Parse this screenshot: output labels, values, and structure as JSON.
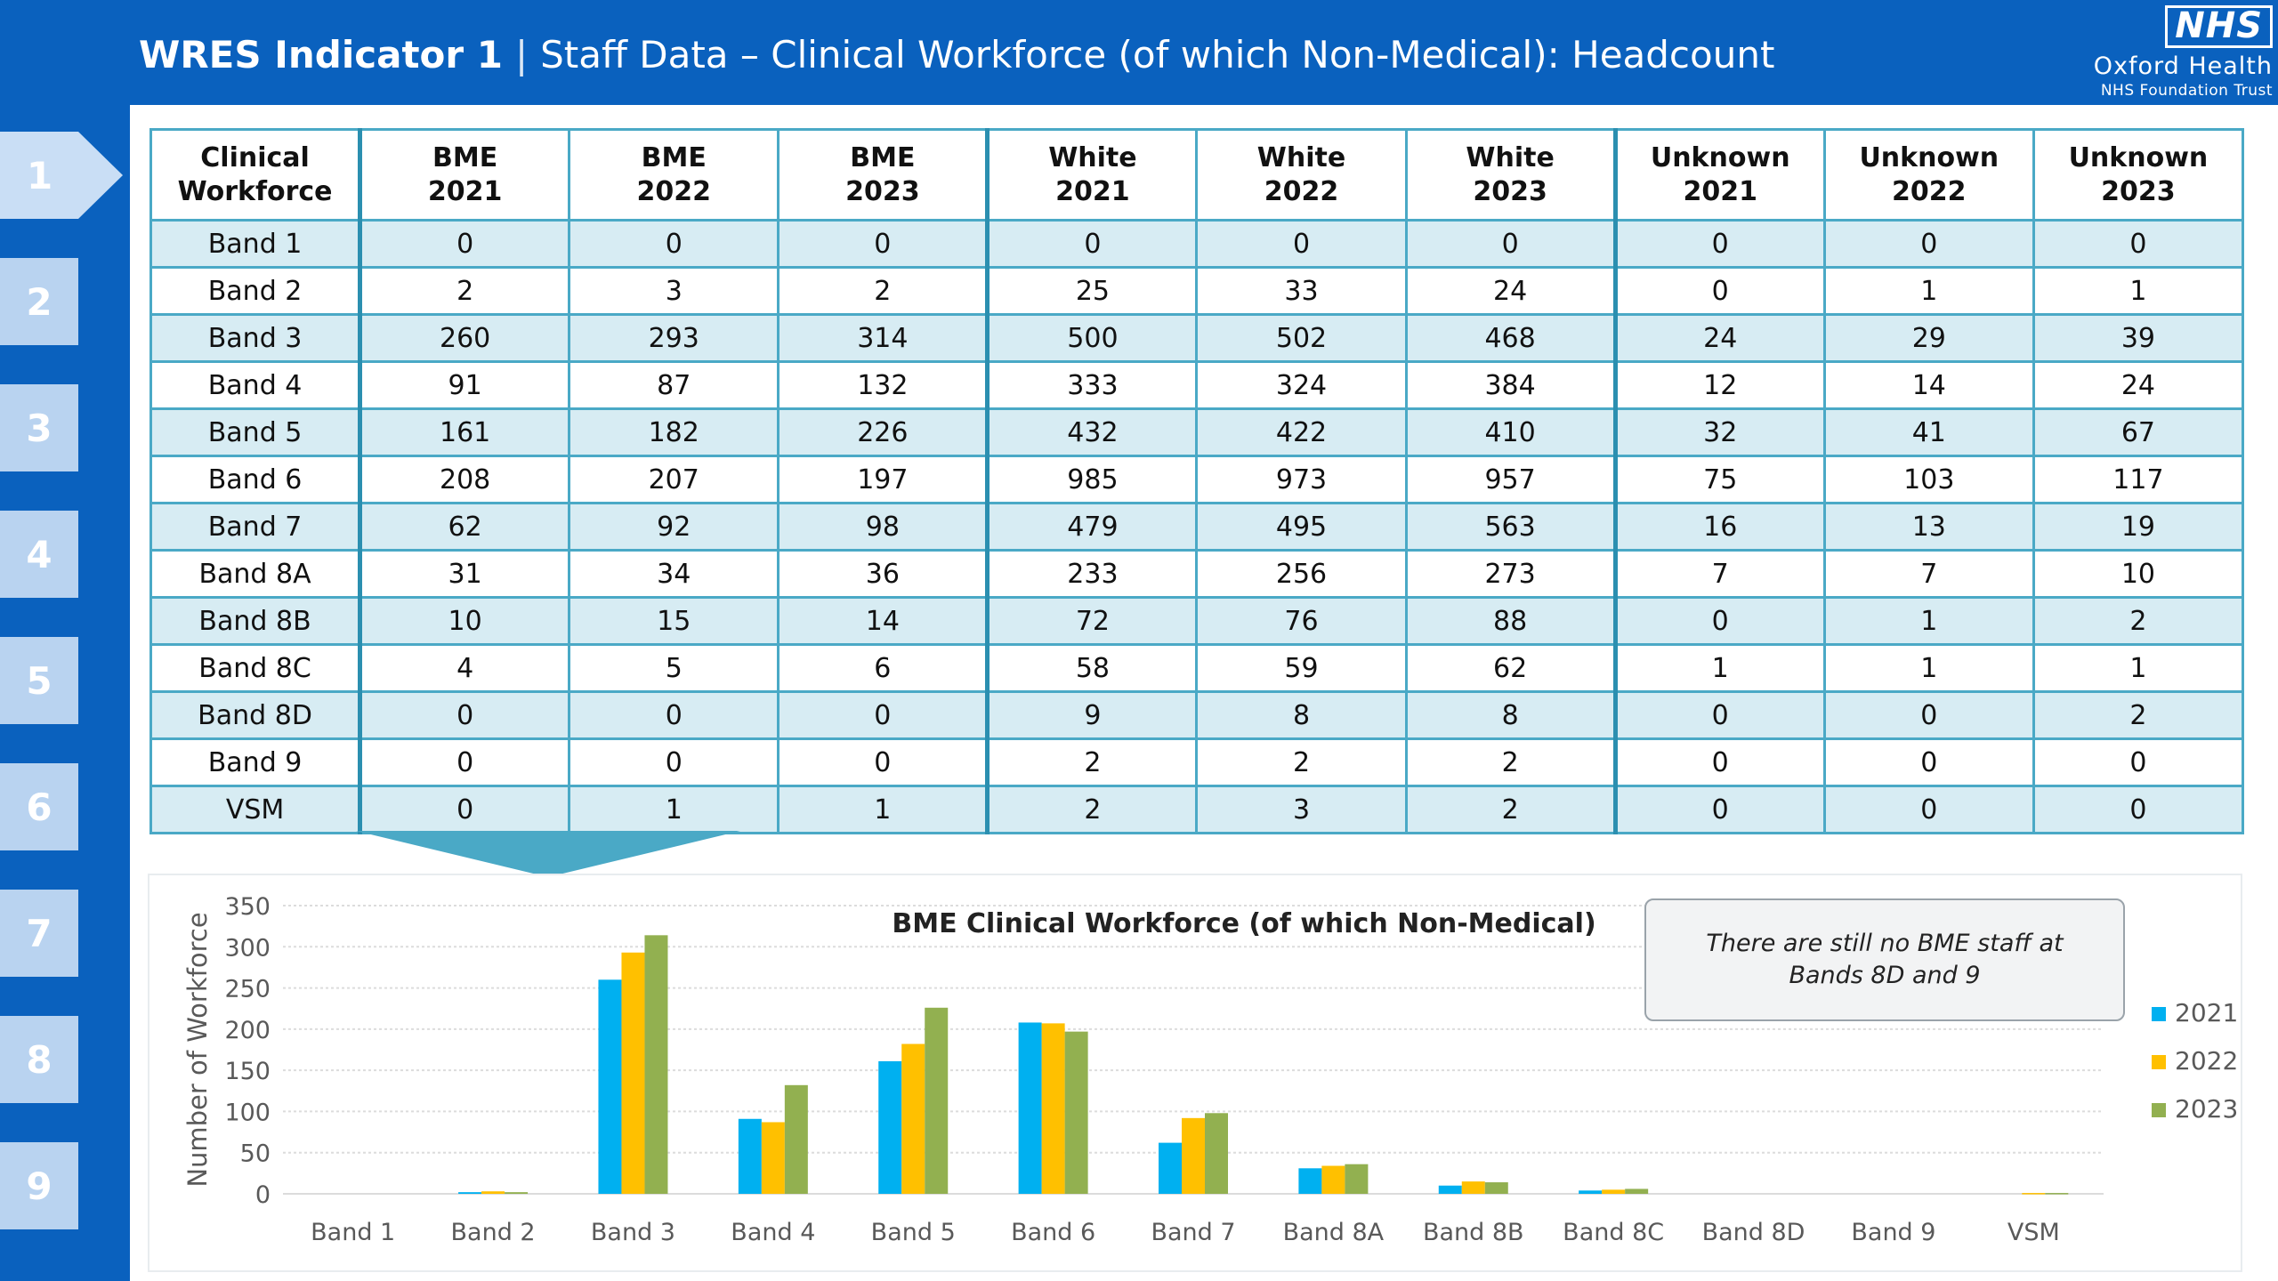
{
  "header": {
    "indicator": "WRES Indicator 1",
    "separator": "|",
    "subtitle": "Staff Data – Clinical Workforce (of which Non-Medical): Headcount"
  },
  "logo": {
    "nhs": "NHS",
    "org": "Oxford Health",
    "trust": "NHS Foundation Trust"
  },
  "nav": {
    "items": [
      "1",
      "2",
      "3",
      "4",
      "5",
      "6",
      "7",
      "8",
      "9"
    ],
    "active": "1"
  },
  "table": {
    "headers": [
      [
        "Clinical",
        "Workforce"
      ],
      [
        "BME",
        "2021"
      ],
      [
        "BME",
        "2022"
      ],
      [
        "BME",
        "2023"
      ],
      [
        "White",
        "2021"
      ],
      [
        "White",
        "2022"
      ],
      [
        "White",
        "2023"
      ],
      [
        "Unknown",
        "2021"
      ],
      [
        "Unknown",
        "2022"
      ],
      [
        "Unknown",
        "2023"
      ]
    ],
    "rows": [
      [
        "Band 1",
        "0",
        "0",
        "0",
        "0",
        "0",
        "0",
        "0",
        "0",
        "0"
      ],
      [
        "Band 2",
        "2",
        "3",
        "2",
        "25",
        "33",
        "24",
        "0",
        "1",
        "1"
      ],
      [
        "Band 3",
        "260",
        "293",
        "314",
        "500",
        "502",
        "468",
        "24",
        "29",
        "39"
      ],
      [
        "Band 4",
        "91",
        "87",
        "132",
        "333",
        "324",
        "384",
        "12",
        "14",
        "24"
      ],
      [
        "Band 5",
        "161",
        "182",
        "226",
        "432",
        "422",
        "410",
        "32",
        "41",
        "67"
      ],
      [
        "Band 6",
        "208",
        "207",
        "197",
        "985",
        "973",
        "957",
        "75",
        "103",
        "117"
      ],
      [
        "Band 7",
        "62",
        "92",
        "98",
        "479",
        "495",
        "563",
        "16",
        "13",
        "19"
      ],
      [
        "Band 8A",
        "31",
        "34",
        "36",
        "233",
        "256",
        "273",
        "7",
        "7",
        "10"
      ],
      [
        "Band 8B",
        "10",
        "15",
        "14",
        "72",
        "76",
        "88",
        "0",
        "1",
        "2"
      ],
      [
        "Band 8C",
        "4",
        "5",
        "6",
        "58",
        "59",
        "62",
        "1",
        "1",
        "1"
      ],
      [
        "Band 8D",
        "0",
        "0",
        "0",
        "9",
        "8",
        "8",
        "0",
        "0",
        "2"
      ],
      [
        "Band 9",
        "0",
        "0",
        "0",
        "2",
        "2",
        "2",
        "0",
        "0",
        "0"
      ],
      [
        "VSM",
        "0",
        "1",
        "1",
        "2",
        "3",
        "2",
        "0",
        "0",
        "0"
      ]
    ]
  },
  "callout": "There are still no BME staff at Bands 8D and 9",
  "chart_data": {
    "type": "bar",
    "title": "BME Clinical Workforce (of which Non-Medical)",
    "xlabel": "",
    "ylabel": "Number of Workforce",
    "ylim": [
      0,
      350
    ],
    "yticks": [
      0,
      50,
      100,
      150,
      200,
      250,
      300,
      350
    ],
    "grid": true,
    "legend": "right",
    "categories": [
      "Band 1",
      "Band 2",
      "Band 3",
      "Band 4",
      "Band 5",
      "Band 6",
      "Band 7",
      "Band 8A",
      "Band 8B",
      "Band 8C",
      "Band 8D",
      "Band 9",
      "VSM"
    ],
    "series": [
      {
        "name": "2021",
        "color": "#00b0f0",
        "values": [
          0,
          2,
          260,
          91,
          161,
          208,
          62,
          31,
          10,
          4,
          0,
          0,
          0
        ]
      },
      {
        "name": "2022",
        "color": "#ffc000",
        "values": [
          0,
          3,
          293,
          87,
          182,
          207,
          92,
          34,
          15,
          5,
          0,
          0,
          1
        ]
      },
      {
        "name": "2023",
        "color": "#92b050",
        "values": [
          0,
          2,
          314,
          132,
          226,
          197,
          98,
          36,
          14,
          6,
          0,
          0,
          1
        ]
      }
    ]
  }
}
